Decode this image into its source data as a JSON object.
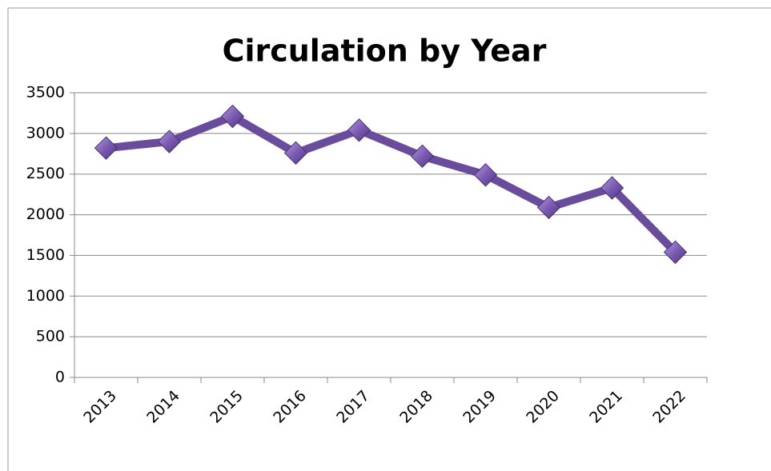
{
  "chart_data": {
    "type": "line",
    "title": "Circulation by Year",
    "categories": [
      "2013",
      "2014",
      "2015",
      "2016",
      "2017",
      "2018",
      "2019",
      "2020",
      "2021",
      "2022"
    ],
    "values": [
      2820,
      2900,
      3210,
      2760,
      3040,
      2720,
      2490,
      2090,
      2330,
      1540
    ],
    "color": "#6a4c9c",
    "ylim": [
      0,
      3500
    ],
    "yticks": [
      0,
      500,
      1000,
      1500,
      2000,
      2500,
      3000,
      3500
    ],
    "grid": true
  }
}
